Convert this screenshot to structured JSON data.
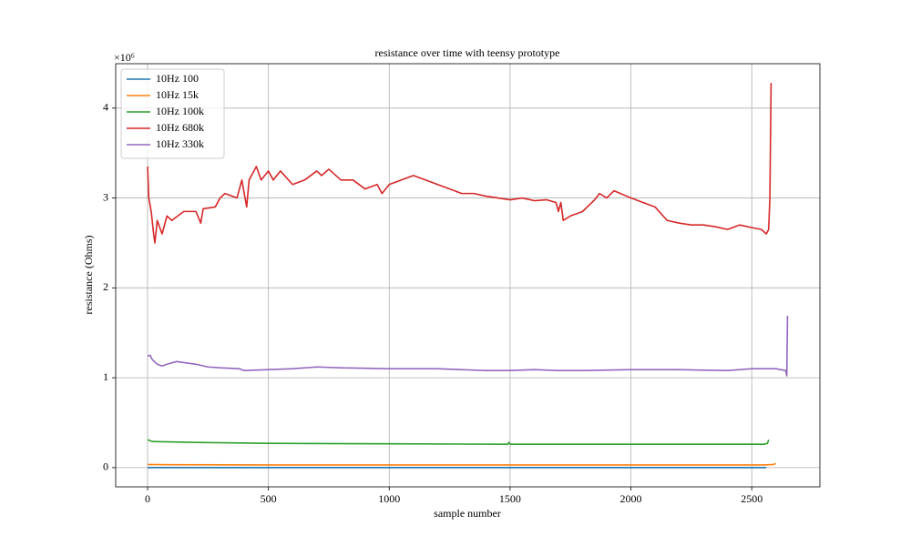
{
  "chart_data": {
    "type": "line",
    "title": "resistance over time with teensy prototype",
    "xlabel": "sample number",
    "ylabel": "resistance (Ohms)",
    "y_offset_label": "×10⁶",
    "xlim": [
      -132,
      2782
    ],
    "ylim": [
      -0.214,
      4.494
    ],
    "xticks": [
      0,
      500,
      1000,
      1500,
      2000,
      2500
    ],
    "yticks": [
      0,
      1,
      2,
      3,
      4
    ],
    "grid": true,
    "legend": "upper left",
    "series": [
      {
        "name": "10Hz 100",
        "color": "#1f77b4",
        "x": [
          0,
          500,
          1000,
          1500,
          2000,
          2560
        ],
        "values": [
          0.0001,
          0.0001,
          0.0001,
          0.0001,
          0.0001,
          0.0001
        ]
      },
      {
        "name": "10Hz 15k",
        "color": "#ff7f0e",
        "x": [
          0,
          100,
          500,
          1500,
          2550,
          2590,
          2600
        ],
        "values": [
          0.035,
          0.032,
          0.03,
          0.03,
          0.03,
          0.035,
          0.045
        ]
      },
      {
        "name": "10Hz 100k",
        "color": "#2ca02c",
        "x": [
          0,
          20,
          200,
          500,
          1000,
          1490,
          1495,
          1500,
          2000,
          2550,
          2565,
          2570
        ],
        "values": [
          0.31,
          0.29,
          0.28,
          0.27,
          0.265,
          0.26,
          0.28,
          0.26,
          0.26,
          0.26,
          0.27,
          0.31
        ]
      },
      {
        "name": "10Hz 680k",
        "color": "#d62728",
        "x": [
          0,
          5,
          15,
          25,
          30,
          40,
          60,
          80,
          100,
          150,
          200,
          220,
          230,
          280,
          300,
          320,
          370,
          390,
          400,
          410,
          420,
          450,
          470,
          500,
          520,
          550,
          600,
          650,
          700,
          720,
          750,
          800,
          850,
          900,
          950,
          970,
          1000,
          1050,
          1100,
          1150,
          1200,
          1250,
          1300,
          1350,
          1400,
          1450,
          1500,
          1550,
          1600,
          1650,
          1690,
          1700,
          1710,
          1720,
          1750,
          1800,
          1850,
          1870,
          1900,
          1930,
          2000,
          2050,
          2100,
          2150,
          2200,
          2250,
          2300,
          2350,
          2400,
          2450,
          2500,
          2540,
          2560,
          2570,
          2575,
          2580
        ],
        "values": [
          3.35,
          3.0,
          2.85,
          2.6,
          2.5,
          2.75,
          2.6,
          2.8,
          2.75,
          2.85,
          2.85,
          2.72,
          2.88,
          2.9,
          3.0,
          3.05,
          3.0,
          3.2,
          3.05,
          2.9,
          3.2,
          3.35,
          3.2,
          3.3,
          3.2,
          3.3,
          3.15,
          3.2,
          3.3,
          3.25,
          3.32,
          3.2,
          3.2,
          3.1,
          3.15,
          3.05,
          3.15,
          3.2,
          3.25,
          3.2,
          3.15,
          3.1,
          3.05,
          3.05,
          3.02,
          3.0,
          2.98,
          3.0,
          2.97,
          2.98,
          2.95,
          2.85,
          2.95,
          2.75,
          2.8,
          2.85,
          2.98,
          3.05,
          3.0,
          3.08,
          3.0,
          2.95,
          2.9,
          2.75,
          2.72,
          2.7,
          2.7,
          2.68,
          2.65,
          2.7,
          2.67,
          2.65,
          2.6,
          2.65,
          3.0,
          4.28
        ]
      },
      {
        "name": "10Hz 330k",
        "color": "#9467bd",
        "x": [
          0,
          10,
          20,
          40,
          60,
          80,
          120,
          200,
          250,
          300,
          380,
          400,
          500,
          600,
          700,
          800,
          1000,
          1200,
          1300,
          1400,
          1500,
          1600,
          1700,
          1800,
          2000,
          2200,
          2400,
          2500,
          2600,
          2640,
          2645,
          2648
        ],
        "values": [
          1.24,
          1.25,
          1.2,
          1.15,
          1.13,
          1.15,
          1.18,
          1.15,
          1.12,
          1.11,
          1.1,
          1.08,
          1.09,
          1.1,
          1.12,
          1.11,
          1.1,
          1.1,
          1.09,
          1.08,
          1.08,
          1.09,
          1.08,
          1.08,
          1.09,
          1.09,
          1.08,
          1.1,
          1.1,
          1.08,
          1.02,
          1.69
        ]
      }
    ]
  }
}
